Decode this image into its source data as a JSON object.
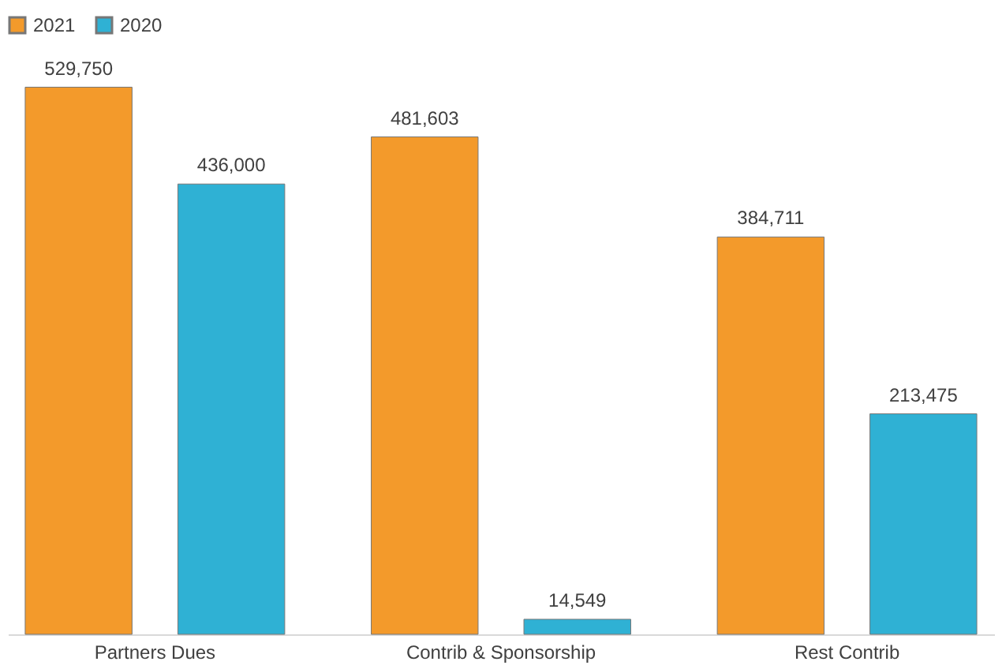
{
  "chart_data": {
    "type": "bar",
    "categories": [
      "Partners Dues",
      "Contrib & Sponsorship",
      "Rest Contrib"
    ],
    "series": [
      {
        "name": "2021",
        "color": "#f39a2b",
        "values": [
          529750,
          481603,
          384711
        ],
        "value_labels": [
          "529,750",
          "481,603",
          "384,711"
        ]
      },
      {
        "name": "2020",
        "color": "#2fb1d4",
        "values": [
          436000,
          14549,
          213475
        ],
        "value_labels": [
          "436,000",
          "14,549",
          "213,475"
        ]
      }
    ],
    "legend": "top",
    "grid": false
  }
}
